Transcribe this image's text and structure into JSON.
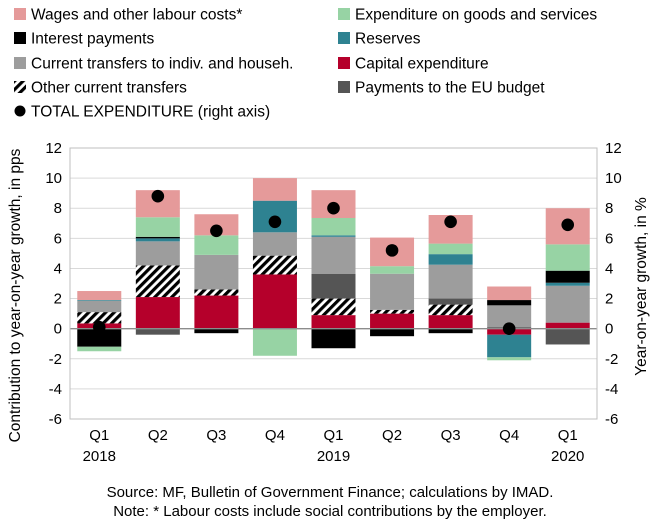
{
  "chart_data": {
    "type": "bar",
    "stacked": true,
    "categories": [
      "Q1",
      "Q2",
      "Q3",
      "Q4",
      "Q1",
      "Q2",
      "Q3",
      "Q4",
      "Q1"
    ],
    "year_labels": [
      {
        "index": 0,
        "label": "2018"
      },
      {
        "index": 4,
        "label": "2019"
      },
      {
        "index": 8,
        "label": "2020"
      }
    ],
    "ylabel": "Contribution to year-on-year growth, in pps",
    "y2label": "Year-on-year growth, in %",
    "ylim": [
      -6,
      12
    ],
    "yticks": [
      -6,
      -4,
      -2,
      0,
      2,
      4,
      6,
      8,
      10,
      12
    ],
    "y2lim": [
      -6,
      12
    ],
    "y2ticks": [
      -6,
      -4,
      -2,
      0,
      2,
      4,
      6,
      8,
      10,
      12
    ],
    "grid": true,
    "series": [
      {
        "name": "Capital expenditure",
        "key": "capex",
        "color": "#b5002b",
        "pattern": "none",
        "values": [
          0.35,
          2.1,
          2.2,
          3.6,
          0.9,
          1.0,
          0.9,
          -0.4,
          0.4
        ]
      },
      {
        "name": "Other current transfers",
        "key": "other",
        "color": "#000000",
        "pattern": "hatch",
        "values": [
          0.75,
          2.1,
          0.4,
          1.25,
          1.1,
          0.25,
          0.7,
          0.0,
          0.0
        ]
      },
      {
        "name": "Payments to the EU budget",
        "key": "eu",
        "color": "#555555",
        "pattern": "none",
        "values": [
          0.0,
          -0.4,
          0.0,
          0.0,
          1.65,
          0.0,
          0.4,
          0.1,
          -1.05
        ]
      },
      {
        "name": "Current transfers to indiv. and househ.",
        "key": "transfers",
        "color": "#9d9d9d",
        "pattern": "none",
        "values": [
          0.75,
          1.6,
          2.3,
          1.55,
          2.45,
          2.4,
          2.25,
          1.45,
          2.45
        ]
      },
      {
        "name": "Reserves",
        "key": "reserves",
        "color": "#2e8291",
        "pattern": "none",
        "values": [
          0.05,
          0.2,
          0.0,
          2.1,
          0.1,
          0.0,
          0.7,
          -1.5,
          0.2
        ]
      },
      {
        "name": "Interest payments",
        "key": "interest",
        "color": "#000000",
        "pattern": "none",
        "values": [
          -1.2,
          0.1,
          -0.3,
          0.0,
          -1.3,
          -0.5,
          -0.3,
          0.35,
          0.8
        ]
      },
      {
        "name": "Expenditure on goods and services",
        "key": "goods",
        "color": "#97d3a4",
        "pattern": "none",
        "values": [
          -0.3,
          1.3,
          1.3,
          -1.8,
          1.15,
          0.5,
          0.7,
          -0.2,
          1.75
        ]
      },
      {
        "name": "Wages and other labour costs*",
        "key": "wages",
        "color": "#e59a9a",
        "pattern": "none",
        "values": [
          0.6,
          1.8,
          1.4,
          1.5,
          1.85,
          1.9,
          1.9,
          0.9,
          2.4
        ]
      }
    ],
    "total": {
      "name": "TOTAL EXPENDITURE (right axis)",
      "axis": "right",
      "color": "#000000",
      "values": [
        0.1,
        8.8,
        6.5,
        7.1,
        8.0,
        5.2,
        7.1,
        0.0,
        6.9
      ]
    },
    "legend_position": "top",
    "legend_order": [
      "wages",
      "goods",
      "interest",
      "reserves",
      "transfers",
      "capex",
      "other",
      "eu",
      "total"
    ]
  },
  "notes": {
    "source": "Source: MF, Bulletin of Government Finance; calculations by IMAD.",
    "note": "Note: * Labour costs include social contributions by the employer."
  }
}
